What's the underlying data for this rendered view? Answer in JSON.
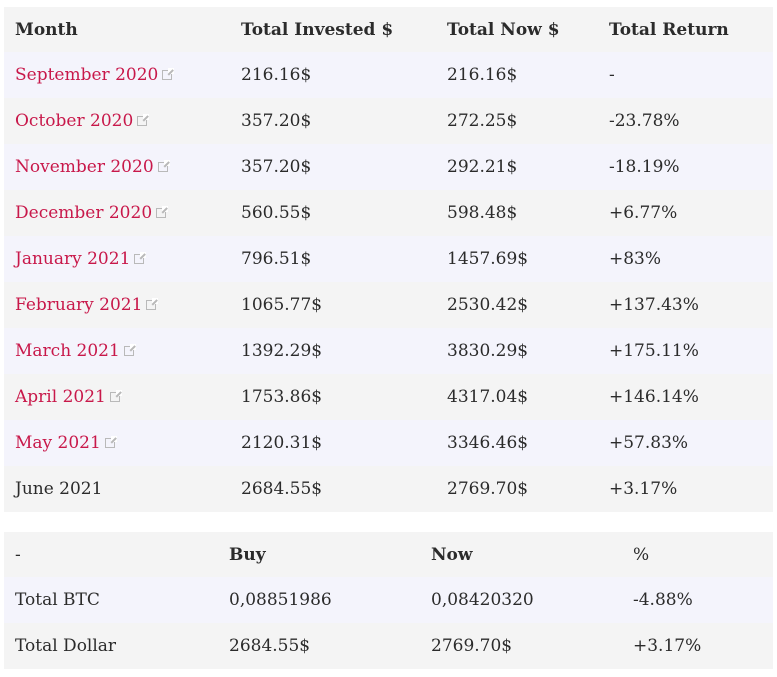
{
  "monthly_table": {
    "headers": [
      "Month",
      "Total Invested $",
      "Total Now $",
      "Total Return"
    ],
    "rows": [
      {
        "month": "September 2020",
        "linked": true,
        "invested": "216.16$",
        "now": "216.16$",
        "ret": "-"
      },
      {
        "month": "October 2020",
        "linked": true,
        "invested": "357.20$",
        "now": "272.25$",
        "ret": "-23.78%"
      },
      {
        "month": "November 2020",
        "linked": true,
        "invested": "357.20$",
        "now": "292.21$",
        "ret": "-18.19%"
      },
      {
        "month": "December 2020",
        "linked": true,
        "invested": "560.55$",
        "now": "598.48$",
        "ret": "+6.77%"
      },
      {
        "month": "January 2021",
        "linked": true,
        "invested": "796.51$",
        "now": "1457.69$",
        "ret": "+83%"
      },
      {
        "month": "February 2021",
        "linked": true,
        "invested": "1065.77$",
        "now": "2530.42$",
        "ret": "+137.43%"
      },
      {
        "month": "March 2021",
        "linked": true,
        "invested": "1392.29$",
        "now": "3830.29$",
        "ret": "+175.11%"
      },
      {
        "month": "April 2021",
        "linked": true,
        "invested": "1753.86$",
        "now": "4317.04$",
        "ret": "+146.14%"
      },
      {
        "month": "May 2021",
        "linked": true,
        "invested": "2120.31$",
        "now": "3346.46$",
        "ret": "+57.83%"
      },
      {
        "month": "June 2021",
        "linked": false,
        "invested": "2684.55$",
        "now": "2769.70$",
        "ret": "+3.17%"
      }
    ]
  },
  "summary_table": {
    "headers": [
      "-",
      "Buy",
      "Now",
      "%"
    ],
    "rows": [
      {
        "label": "Total BTC",
        "buy": "0,08851986",
        "now": "0,08420320",
        "pct": "-4.88%"
      },
      {
        "label": "Total Dollar",
        "buy": "2684.55$",
        "now": "2769.70$",
        "pct": "+3.17%"
      }
    ]
  },
  "colors": {
    "link": "#c8184a",
    "row_odd": "#f4f4fc",
    "row_even": "#f4f4f4"
  },
  "icons": {
    "external_link": "external-link-icon"
  }
}
